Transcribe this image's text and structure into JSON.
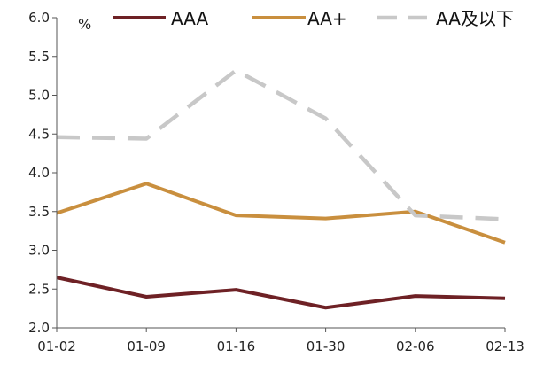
{
  "chart_data": {
    "type": "line",
    "title": "",
    "xlabel": "",
    "ylabel": "",
    "unit": "%",
    "ylim": [
      2.0,
      6.0
    ],
    "yticks": [
      "2.0",
      "2.5",
      "3.0",
      "3.5",
      "4.0",
      "4.5",
      "5.0",
      "5.5",
      "6.0"
    ],
    "categories": [
      "01-02",
      "01-09",
      "01-16",
      "01-30",
      "02-06",
      "02-13"
    ],
    "grid": false,
    "legend_position": "top",
    "series": [
      {
        "name": "AAA",
        "color": "#6e2125",
        "style": "solid",
        "values": [
          2.65,
          2.4,
          2.49,
          2.26,
          2.41,
          2.38
        ]
      },
      {
        "name": "AA+",
        "color": "#c98f3e",
        "style": "solid",
        "values": [
          3.48,
          3.86,
          3.45,
          3.41,
          3.5,
          3.1
        ]
      },
      {
        "name": "AA及以下",
        "color": "#c8c8c8",
        "style": "dashed",
        "values": [
          4.46,
          4.44,
          5.32,
          4.7,
          3.45,
          3.4
        ]
      }
    ]
  }
}
